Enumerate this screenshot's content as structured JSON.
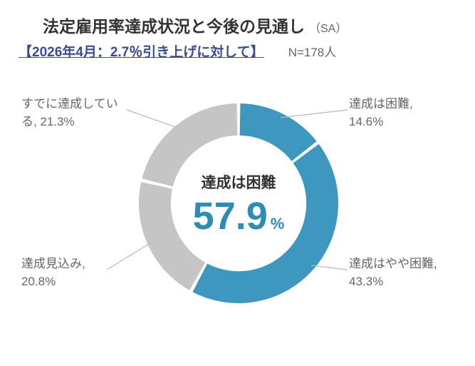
{
  "header": {
    "title": "法定雇用率達成状況と今後の見通し",
    "title_suffix": "（SA）",
    "subtitle": "【2026年4月：2.7％引き上げに対して】",
    "n_value": "N=178人"
  },
  "center": {
    "label": "達成は困難",
    "value": "57.9",
    "unit": "%"
  },
  "donut": {
    "type": "donut",
    "start_angle_deg": 0,
    "inner_radius_ratio": 0.68,
    "gap_deg": 2,
    "background_color": "#ffffff",
    "slices": [
      {
        "key": "difficult",
        "label": "達成は困難,",
        "value_text": "14.6%",
        "value": 14.6,
        "color": "#3d97bf"
      },
      {
        "key": "somewhat_difficult",
        "label": "達成はやや困難,",
        "value_text": "43.3%",
        "value": 43.3,
        "color": "#3d97bf"
      },
      {
        "key": "expected",
        "label": "達成見込み,",
        "value_text": "20.8%",
        "value": 20.8,
        "color": "#c5c5c5"
      },
      {
        "key": "already",
        "label": "すでに達成している,",
        "value_text": "21.3%",
        "value": 21.3,
        "color": "#c5c5c5"
      }
    ]
  },
  "leaders": {
    "stroke": "#b8b8b8",
    "stroke_width": 1.2
  },
  "typography": {
    "title_fontsize": 23,
    "subtitle_fontsize": 19,
    "label_fontsize": 17,
    "center_label_fontsize": 21,
    "center_value_fontsize": 54,
    "subtitle_color": "#3a4d8f",
    "text_color": "#666666",
    "accent_color": "#2d8cb3"
  }
}
